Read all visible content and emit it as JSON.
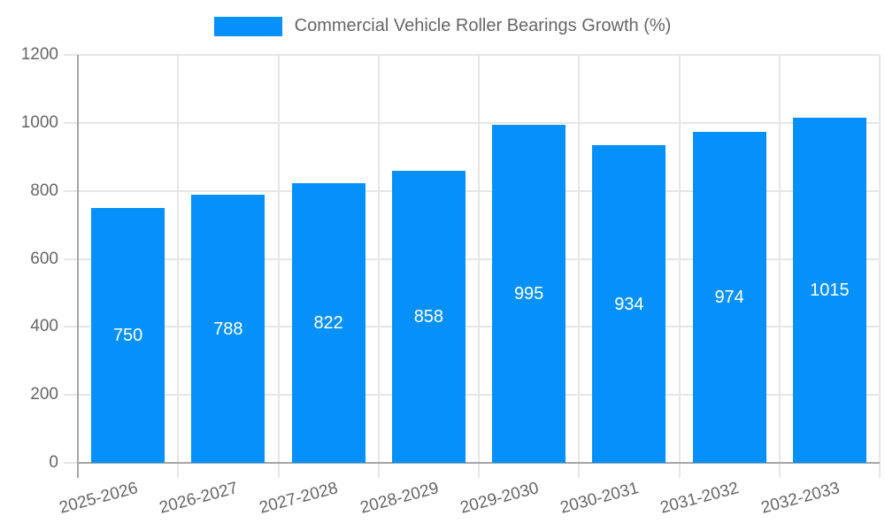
{
  "legend": {
    "label": "Commercial Vehicle Roller Bearings Growth (%)",
    "swatch_color": "#0691fa",
    "position": "top"
  },
  "colors": {
    "bar": "#0691fa",
    "grid": "#e6e6e6",
    "axis": "#a6a6a6",
    "tick_label": "#666666",
    "value_label": "#ffffff"
  },
  "chart_data": {
    "type": "bar",
    "title": "Commercial Vehicle Roller Bearings Growth (%)",
    "categories": [
      "2025-2026",
      "2026-2027",
      "2027-2028",
      "2028-2029",
      "2029-2030",
      "2030-2031",
      "2031-2032",
      "2032-2033"
    ],
    "values": [
      750,
      788,
      822,
      858,
      995,
      934,
      974,
      1015
    ],
    "xlabel": "",
    "ylabel": "",
    "ylim": [
      0,
      1200
    ],
    "yticks": [
      0,
      200,
      400,
      600,
      800,
      1000,
      1200
    ],
    "grid": true,
    "legend_position": "top",
    "value_label_position": "inside-center",
    "x_tick_rotation_deg": -15
  }
}
